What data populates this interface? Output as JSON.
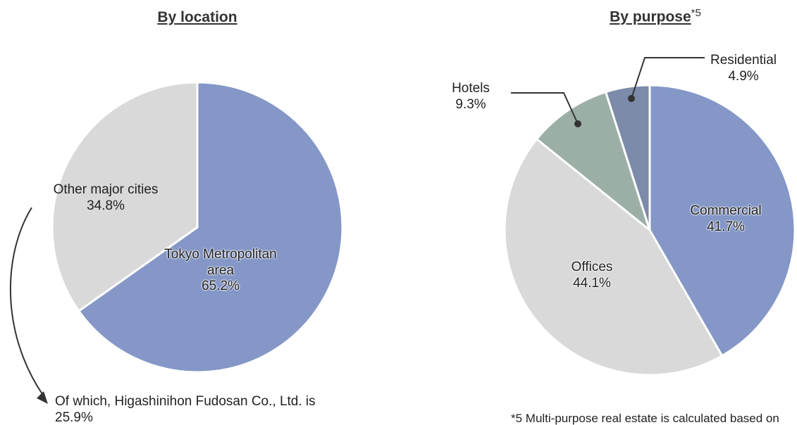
{
  "chart_data": [
    {
      "type": "pie",
      "title": "By location",
      "categories": [
        "Tokyo Metropolitan area",
        "Other major cities"
      ],
      "values": [
        65.2,
        34.8
      ],
      "value_labels": [
        "65.2%",
        "34.8%"
      ],
      "colors": [
        "#8497c7",
        "#d9d9d9"
      ],
      "annotations": [
        "Of which, Higashinihon Fudosan Co., Ltd. is 25.9%"
      ]
    },
    {
      "type": "pie",
      "title": "By purpose",
      "title_note": "*5",
      "categories": [
        "Commercial",
        "Offices",
        "Hotels",
        "Residential"
      ],
      "values": [
        41.7,
        44.1,
        9.3,
        4.9
      ],
      "value_labels": [
        "41.7%",
        "44.1%",
        "9.3%",
        "4.9%"
      ],
      "colors": [
        "#8497c7",
        "#d9d9d9",
        "#9bafa6",
        "#7b8ba9"
      ],
      "annotations": [
        "*5 Multi-purpose real estate is calculated based on"
      ]
    }
  ]
}
